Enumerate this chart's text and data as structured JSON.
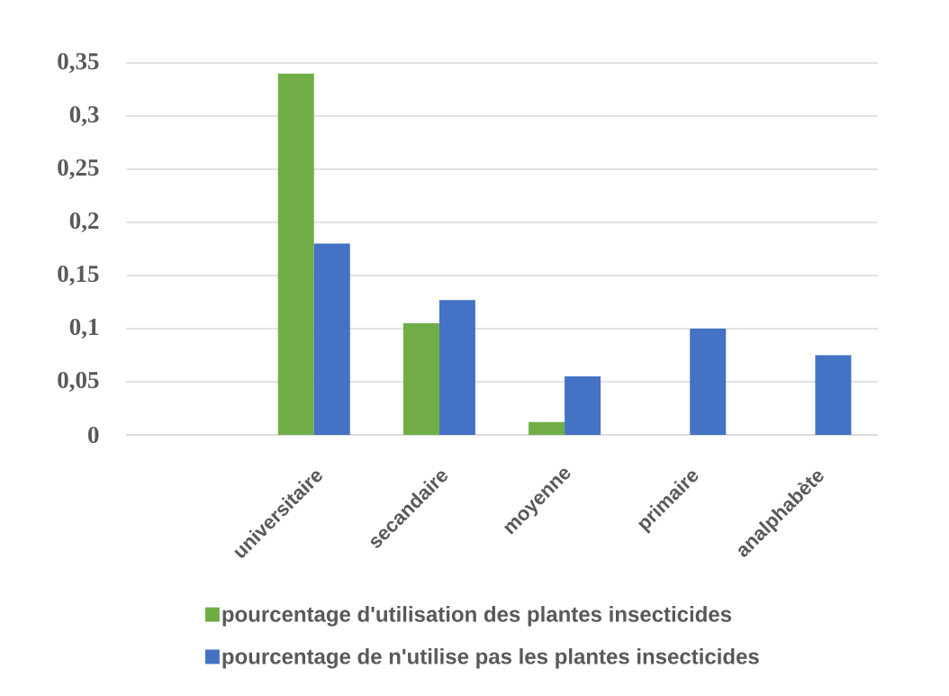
{
  "chart_data": {
    "type": "bar",
    "categories": [
      "universitaire",
      "secandaire",
      "moyenne",
      "primaire",
      "analphabète"
    ],
    "series": [
      {
        "name": "pourcentage d'utilisation des plantes insecticides",
        "color": "#70ad47",
        "values": [
          0.34,
          0.105,
          0.012,
          0,
          0
        ]
      },
      {
        "name": "pourcentage de n'utilise pas les plantes insecticides",
        "color": "#4472c4",
        "values": [
          0.18,
          0.127,
          0.055,
          0.1,
          0.075
        ]
      }
    ],
    "ylim": [
      0,
      0.35
    ],
    "yticks": [
      0,
      {
        "value": 0.05,
        "label": "0,05"
      },
      {
        "value": 0.1,
        "label": "0,1"
      },
      {
        "value": 0.15,
        "label": "0,15"
      },
      {
        "value": 0.2,
        "label": "0,2"
      },
      {
        "value": 0.25,
        "label": "0,25"
      },
      {
        "value": 0.3,
        "label": "0,3"
      },
      {
        "value": 0.35,
        "label": "0,35"
      }
    ],
    "grid": "y",
    "legend": "bottom"
  }
}
